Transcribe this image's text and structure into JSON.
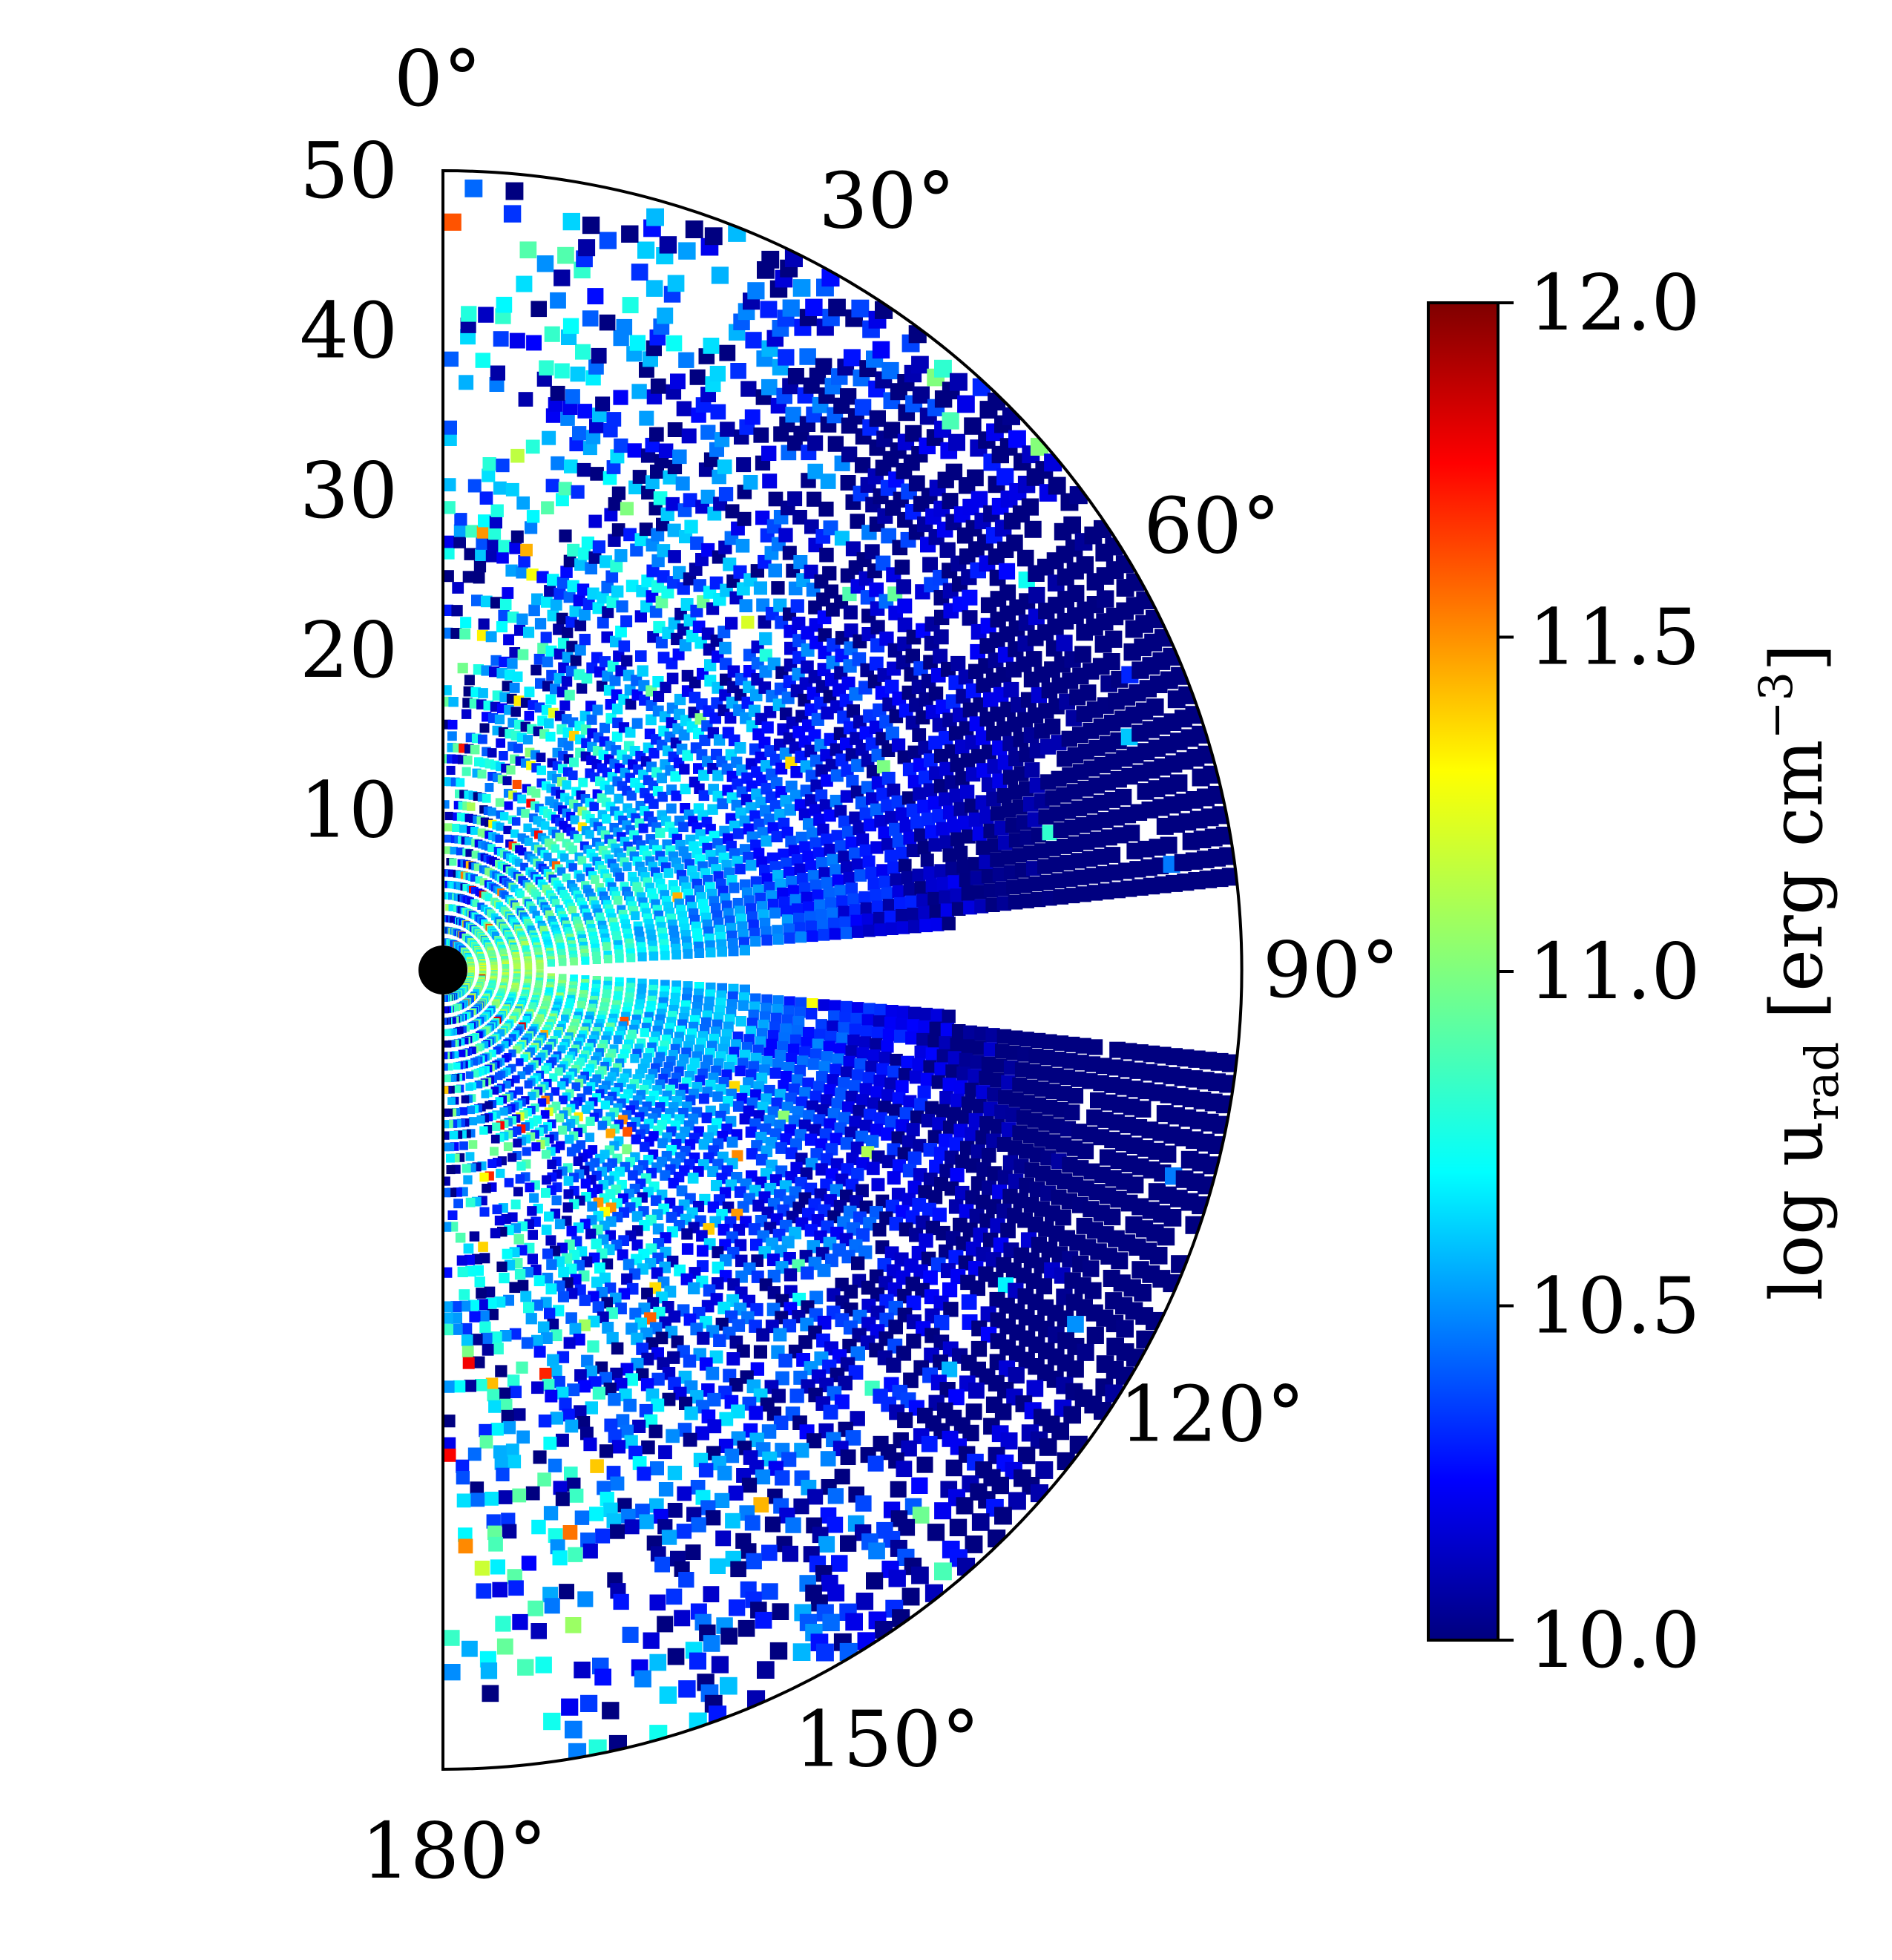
{
  "chart_data": {
    "type": "heatmap",
    "projection": "polar-half",
    "title": "",
    "theta_ticks": [
      "0°",
      "30°",
      "60°",
      "90°",
      "120°",
      "150°",
      "180°"
    ],
    "theta_tick_values": [
      0,
      30,
      60,
      90,
      120,
      150,
      180
    ],
    "r_ticks": [
      "10",
      "20",
      "30",
      "40",
      "50"
    ],
    "r_tick_values": [
      10,
      20,
      30,
      40,
      50
    ],
    "rlim": [
      0,
      50
    ],
    "thetalim": [
      0,
      180
    ],
    "grid": false,
    "colormap": "jet",
    "colorbar": {
      "label_main": "log u",
      "label_sub": "rad",
      "label_units": " [erg cm",
      "label_exp": "−3",
      "label_close": "]",
      "clim": [
        10.0,
        12.0
      ],
      "ticks": [
        "10.0",
        "10.5",
        "11.0",
        "11.5",
        "12.0"
      ],
      "tick_values": [
        10.0,
        10.5,
        11.0,
        11.5,
        12.0
      ],
      "placement": "right"
    },
    "description_of_field": {
      "empty_wedge_theta_range": [
        84,
        96
      ],
      "peak_value_near_center": 11.2,
      "value_at_outer_radius": 10.0,
      "peak_theta": 90
    },
    "central_object": "black-disk"
  }
}
